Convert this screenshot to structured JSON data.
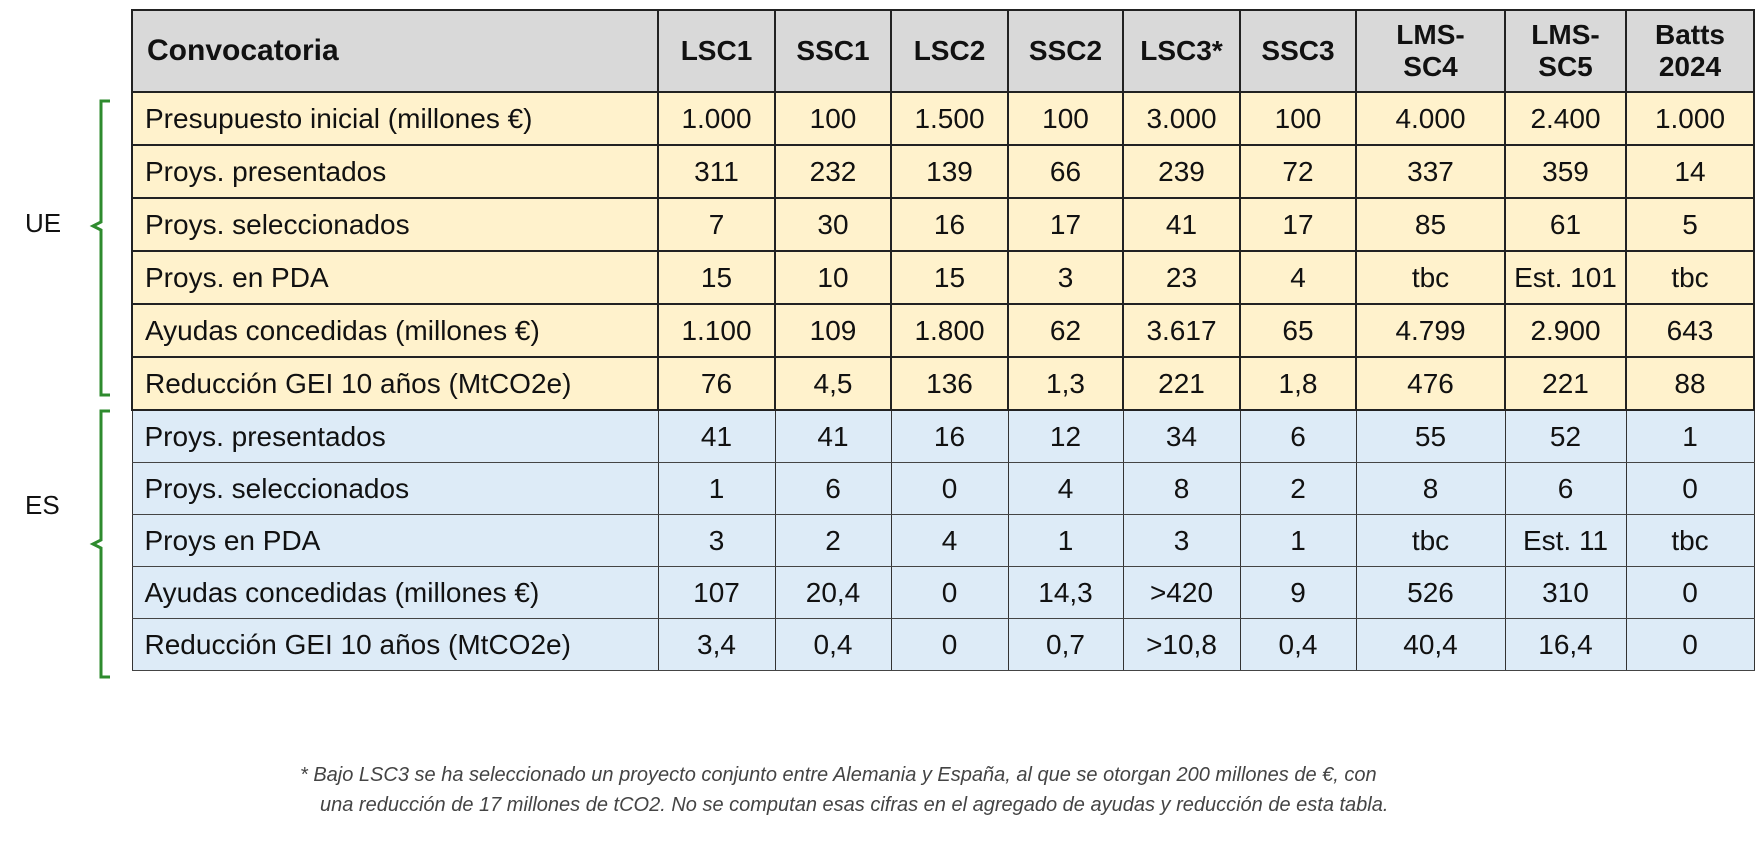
{
  "table": {
    "header": [
      "Convocatoria",
      "LSC1",
      "SSC1",
      "LSC2",
      "SSC2",
      "LSC3*",
      "SSC3",
      "LMS-SC4",
      "LMS-SC5",
      "Batts 2024"
    ],
    "groups": [
      {
        "label": "UE",
        "rows": [
          {
            "label": "Presupuesto inicial (millones €)",
            "values": [
              "1.000",
              "100",
              "1.500",
              "100",
              "3.000",
              "100",
              "4.000",
              "2.400",
              "1.000"
            ]
          },
          {
            "label": "Proys. presentados",
            "values": [
              "311",
              "232",
              "139",
              "66",
              "239",
              "72",
              "337",
              "359",
              "14"
            ]
          },
          {
            "label": "Proys. seleccionados",
            "values": [
              "7",
              "30",
              "16",
              "17",
              "41",
              "17",
              "85",
              "61",
              "5"
            ]
          },
          {
            "label": "Proys. en PDA",
            "values": [
              "15",
              "10",
              "15",
              "3",
              "23",
              "4",
              "tbc",
              "Est. 101",
              "tbc"
            ]
          },
          {
            "label": "Ayudas concedidas (millones €)",
            "values": [
              "1.100",
              "109",
              "1.800",
              "62",
              "3.617",
              "65",
              "4.799",
              "2.900",
              "643"
            ]
          },
          {
            "label": "Reducción GEI 10 años (MtCO2e)",
            "values": [
              "76",
              "4,5",
              "136",
              "1,3",
              "221",
              "1,8",
              "476",
              "221",
              "88"
            ]
          }
        ]
      },
      {
        "label": "ES",
        "rows": [
          {
            "label": "Proys. presentados",
            "values": [
              "41",
              "41",
              "16",
              "12",
              "34",
              "6",
              "55",
              "52",
              "1"
            ]
          },
          {
            "label": "Proys. seleccionados",
            "values": [
              "1",
              "6",
              "0",
              "4",
              "8",
              "2",
              "8",
              "6",
              "0"
            ]
          },
          {
            "label": "Proys en PDA",
            "values": [
              "3",
              "2",
              "4",
              "1",
              "3",
              "1",
              "tbc",
              "Est. 11",
              "tbc"
            ]
          },
          {
            "label": "Ayudas concedidas (millones €)",
            "values": [
              "107",
              "20,4",
              "0",
              "14,3",
              ">420",
              "9",
              "526",
              "310",
              "0"
            ]
          },
          {
            "label": "Reducción GEI 10 años (MtCO2e)",
            "values": [
              "3,4",
              "0,4",
              "0",
              "0,7",
              ">10,8",
              "0,4",
              "40,4",
              "16,4",
              "0"
            ]
          }
        ]
      }
    ]
  },
  "footnote": [
    "* Bajo LSC3 se ha seleccionado un proyecto conjunto entre Alemania y España, al que se otorgan 200 millones de €, con",
    "una reducción de 17 millones de tCO2. No se computan esas cifras en el agregado de ayudas y reducción de esta tabla."
  ],
  "colors": {
    "header": "#d9d9d9",
    "ue": "#fff2cc",
    "es": "#ddebf7",
    "brace": "#2e8b2e"
  }
}
